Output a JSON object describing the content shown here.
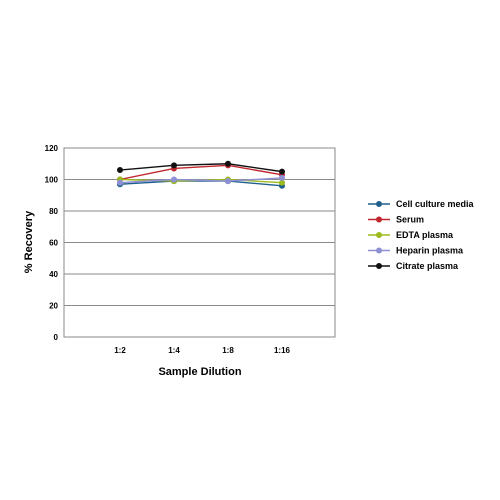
{
  "chart_data": {
    "type": "line",
    "categories": [
      "1:2",
      "1:4",
      "1:8",
      "1:16"
    ],
    "xlabel": "Sample Dilution",
    "ylabel": "% Recovery",
    "ylim": [
      0,
      120
    ],
    "yticks": [
      "0",
      "20",
      "40",
      "60",
      "80",
      "100",
      "120"
    ],
    "grid": true,
    "legend_position": "right",
    "series": [
      {
        "name": "Cell culture media",
        "color": "#1f5f8b",
        "values": [
          97,
          99,
          99,
          96
        ]
      },
      {
        "name": "Serum",
        "color": "#c0282d",
        "values": [
          100,
          107,
          109,
          103
        ]
      },
      {
        "name": "EDTA plasma",
        "color": "#9bbb1c",
        "values": [
          100,
          99,
          100,
          98
        ]
      },
      {
        "name": "Heparin plasma",
        "color": "#8f8fd6",
        "values": [
          98,
          100,
          99,
          101
        ]
      },
      {
        "name": "Citrate plasma",
        "color": "#111111",
        "values": [
          106,
          109,
          110,
          105
        ]
      }
    ]
  }
}
